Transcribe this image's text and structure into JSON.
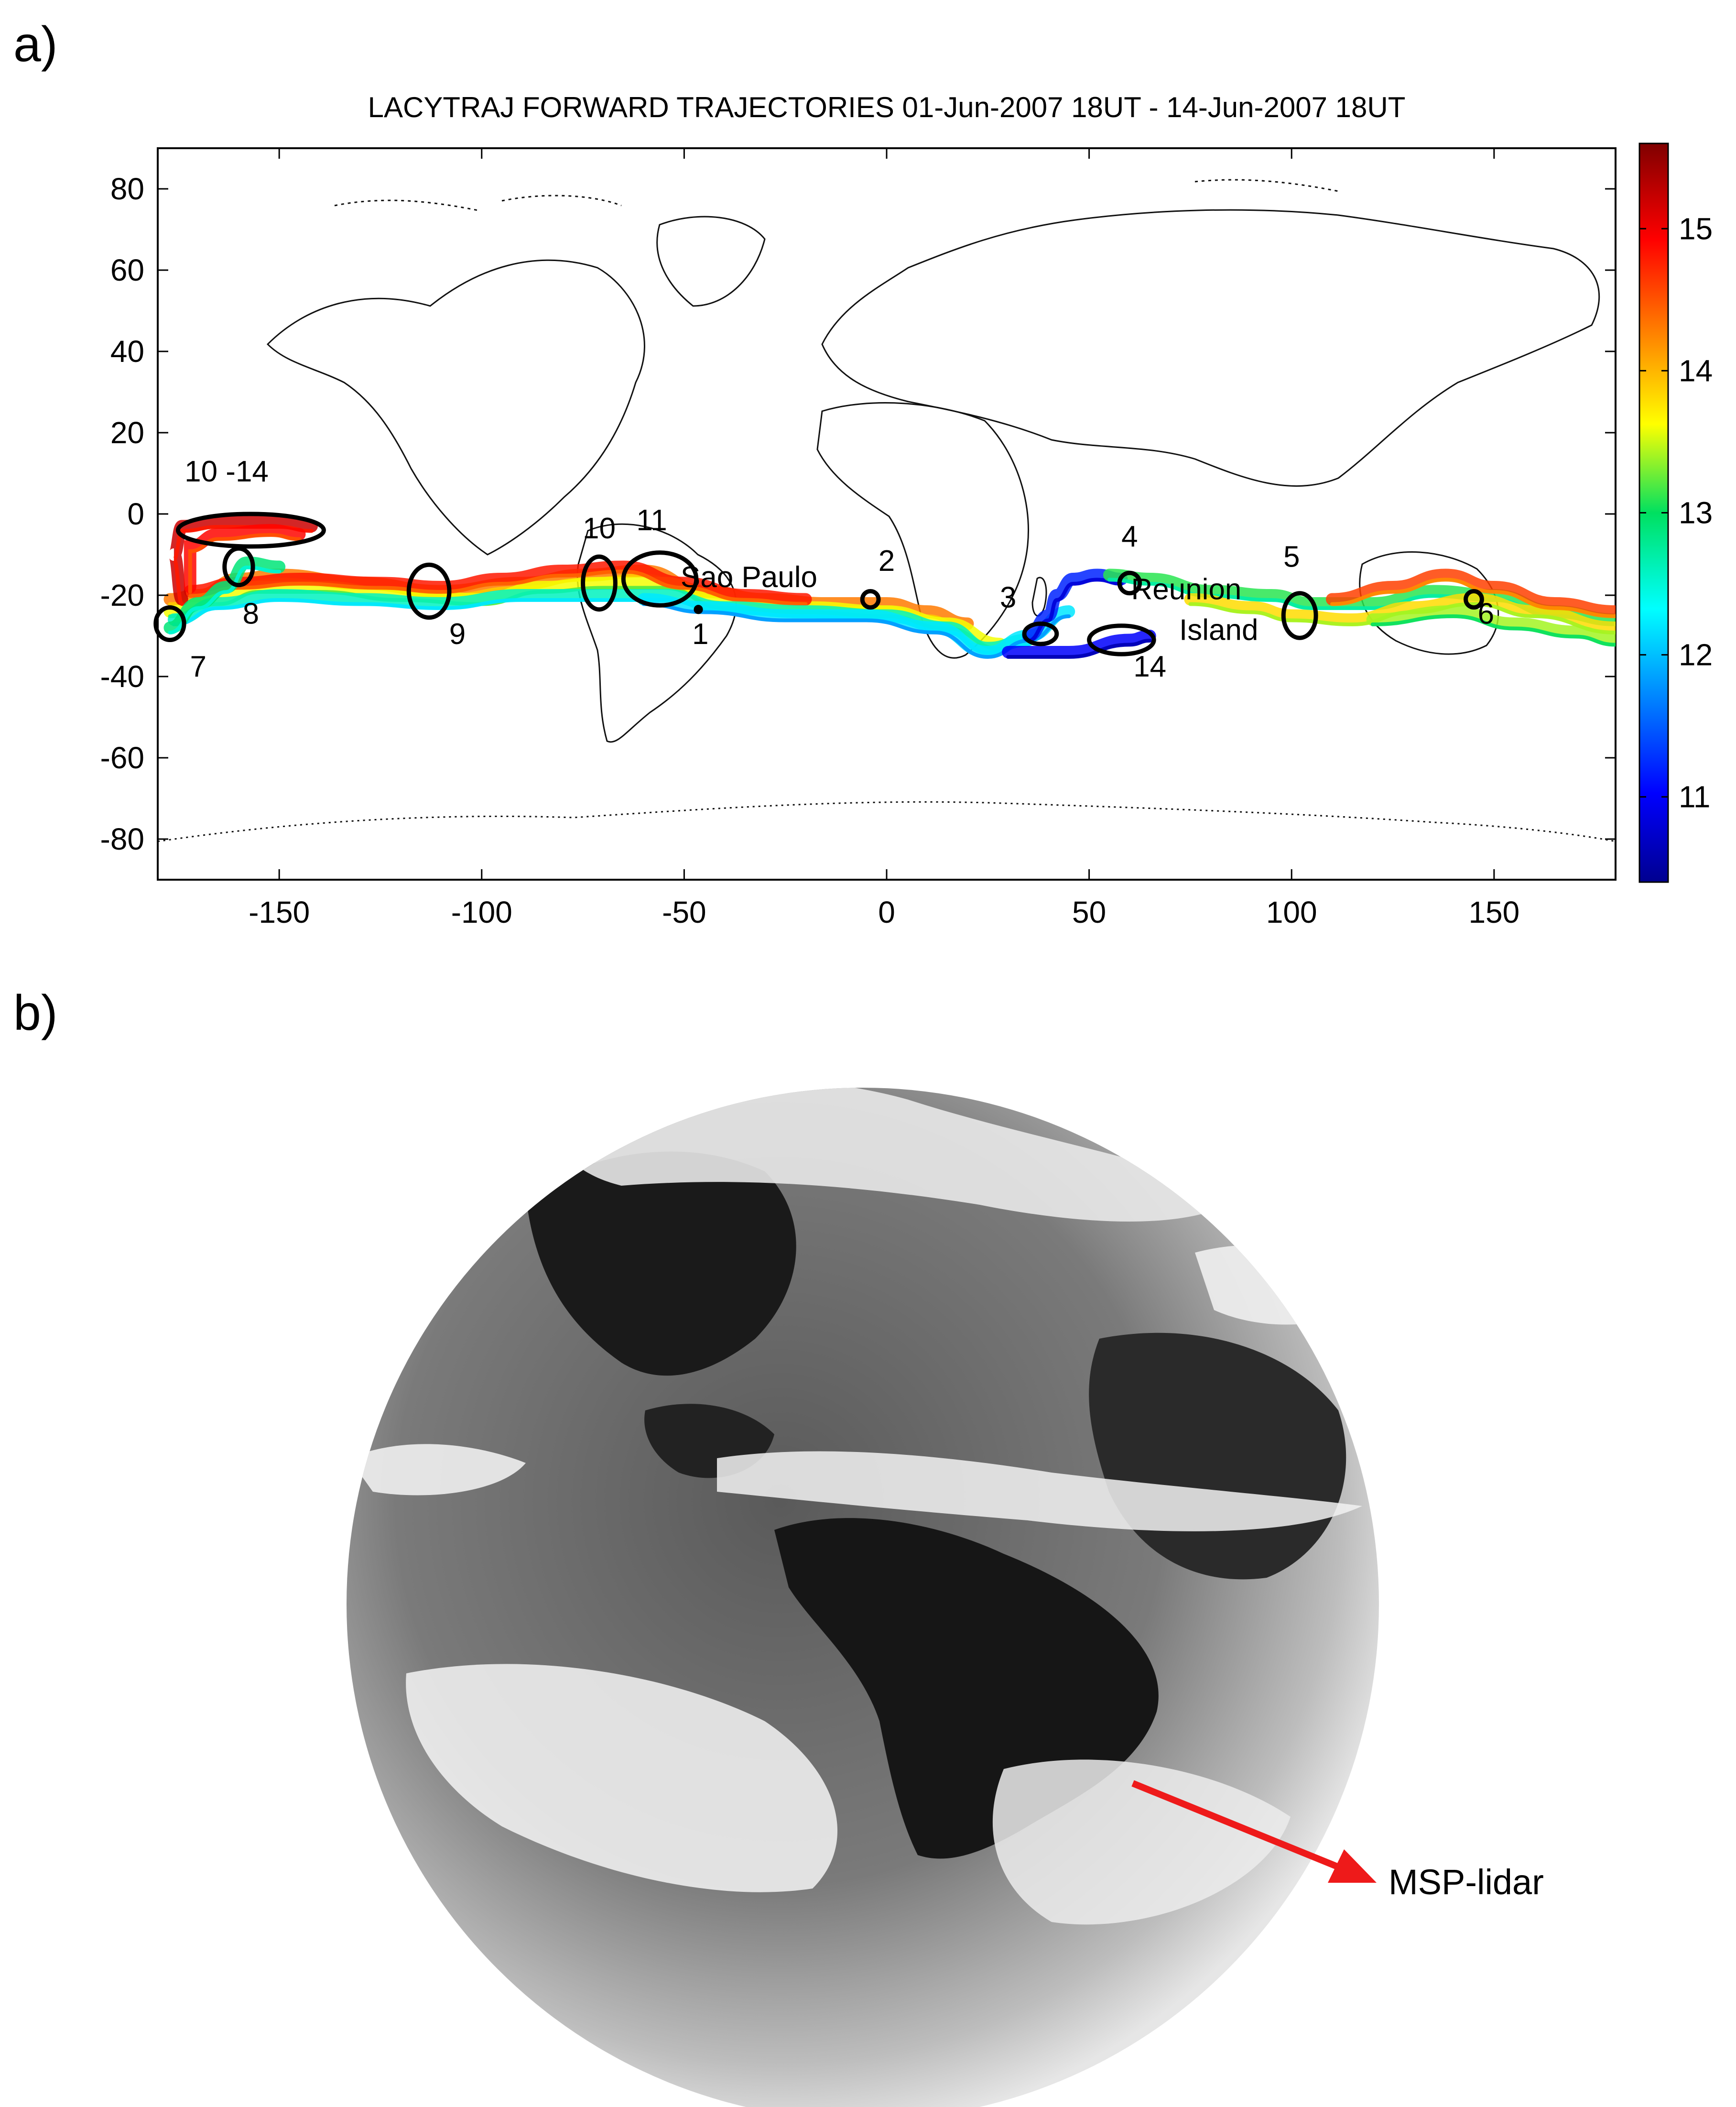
{
  "panels": [
    {
      "label": "a)"
    },
    {
      "label": "b)"
    }
  ],
  "chart_data": {
    "type": "map-trajectories",
    "title": "LACYTRAJ FORWARD TRAJECTORIES 01-Jun-2007 18UT - 14-Jun-2007 18UT",
    "xlim": [
      -180,
      180
    ],
    "ylim": [
      -90,
      90
    ],
    "x_ticks": [
      -150,
      -100,
      -50,
      0,
      50,
      100,
      150
    ],
    "y_ticks": [
      80,
      60,
      40,
      20,
      0,
      -20,
      -40,
      -60,
      -80
    ],
    "colorbar": {
      "range": [
        10.4,
        15.6
      ],
      "ticks": [
        11,
        12,
        13,
        14,
        15
      ],
      "colormap": "jet"
    },
    "annotations": [
      {
        "text": "10 -14",
        "lon": -163,
        "lat": 8
      },
      {
        "text": "8",
        "lon": -157,
        "lat": -27
      },
      {
        "text": "7",
        "lon": -170,
        "lat": -40
      },
      {
        "text": "9",
        "lon": -106,
        "lat": -32
      },
      {
        "text": "10",
        "lon": -71,
        "lat": -6
      },
      {
        "text": "11",
        "lon": -58,
        "lat": -4
      },
      {
        "text": "Sao Paulo",
        "lon": -34,
        "lat": -18
      },
      {
        "text": "1",
        "lon": -46,
        "lat": -32
      },
      {
        "text": "2",
        "lon": 0,
        "lat": -14
      },
      {
        "text": "3",
        "lon": 30,
        "lat": -23
      },
      {
        "text": "4",
        "lon": 60,
        "lat": -8
      },
      {
        "text": "Reunion",
        "lon": 74,
        "lat": -21
      },
      {
        "text": "Island",
        "lon": 82,
        "lat": -31
      },
      {
        "text": "14",
        "lon": 65,
        "lat": -40
      },
      {
        "text": "5",
        "lon": 100,
        "lat": -13
      },
      {
        "text": "6",
        "lon": 148,
        "lat": -27
      }
    ],
    "ellipses": [
      {
        "id": "10-14",
        "lon": -157,
        "lat": -4,
        "rlon": 18,
        "rlat": 4
      },
      {
        "id": "8",
        "lon": -160,
        "lat": -13,
        "rlon": 3.5,
        "rlat": 4.5
      },
      {
        "id": "7",
        "lon": -177,
        "lat": -27,
        "rlon": 3.5,
        "rlat": 4
      },
      {
        "id": "9",
        "lon": -113,
        "lat": -19,
        "rlon": 5,
        "rlat": 6.5
      },
      {
        "id": "10",
        "lon": -71,
        "lat": -17,
        "rlon": 4,
        "rlat": 6.5
      },
      {
        "id": "11",
        "lon": -56,
        "lat": -16,
        "rlon": 9,
        "rlat": 6.5
      },
      {
        "id": "1",
        "lon": -46.5,
        "lat": -23.5,
        "rlon": 0.6,
        "rlat": 0.6
      },
      {
        "id": "2",
        "lon": -4,
        "lat": -21,
        "rlon": 2,
        "rlat": 2
      },
      {
        "id": "3",
        "lon": 38,
        "lat": -29.5,
        "rlon": 4,
        "rlat": 2.5
      },
      {
        "id": "4",
        "lon": 60,
        "lat": -17,
        "rlon": 2.5,
        "rlat": 2.5
      },
      {
        "id": "5",
        "lon": 102,
        "lat": -25,
        "rlon": 4,
        "rlat": 5.5
      },
      {
        "id": "6",
        "lon": 145,
        "lat": -21,
        "rlon": 2,
        "rlat": 2
      },
      {
        "id": "14",
        "lon": 58,
        "lat": -31,
        "rlon": 8,
        "rlat": 3.5
      }
    ],
    "trajectory_bands": [
      {
        "value": 14.3,
        "points": [
          [
            -177,
            -21
          ],
          [
            -170,
            -20
          ],
          [
            -160,
            -16
          ],
          [
            -150,
            -15
          ],
          [
            -130,
            -17
          ],
          [
            -110,
            -19
          ],
          [
            -90,
            -17
          ],
          [
            -75,
            -15
          ],
          [
            -60,
            -14
          ],
          [
            -45,
            -19
          ],
          [
            -30,
            -21
          ],
          [
            -15,
            -22
          ],
          [
            0,
            -22
          ],
          [
            10,
            -24
          ],
          [
            20,
            -27
          ]
        ]
      },
      {
        "value": 13.6,
        "points": [
          [
            -177,
            -24
          ],
          [
            -165,
            -21
          ],
          [
            -155,
            -18
          ],
          [
            -140,
            -18
          ],
          [
            -120,
            -20
          ],
          [
            -100,
            -21
          ],
          [
            -85,
            -18
          ],
          [
            -70,
            -17
          ],
          [
            -55,
            -17
          ],
          [
            -40,
            -22
          ],
          [
            -20,
            -23
          ],
          [
            0,
            -24
          ],
          [
            15,
            -27
          ],
          [
            28,
            -32
          ]
        ]
      },
      {
        "value": 14.8,
        "points": [
          [
            -172,
            -19
          ],
          [
            -160,
            -17
          ],
          [
            -145,
            -16
          ],
          [
            -125,
            -17
          ],
          [
            -110,
            -18
          ],
          [
            -95,
            -16
          ],
          [
            -80,
            -14
          ],
          [
            -65,
            -13
          ],
          [
            -50,
            -17
          ],
          [
            -35,
            -20
          ],
          [
            -20,
            -21
          ]
        ]
      },
      {
        "value": 12.6,
        "points": [
          [
            -176,
            -26
          ],
          [
            -165,
            -22
          ],
          [
            -150,
            -20
          ],
          [
            -130,
            -21
          ],
          [
            -110,
            -22
          ],
          [
            -90,
            -20
          ],
          [
            -70,
            -20
          ],
          [
            -55,
            -20
          ],
          [
            -40,
            -23
          ],
          [
            -20,
            -24
          ],
          [
            0,
            -25
          ],
          [
            15,
            -28
          ],
          [
            25,
            -33
          ],
          [
            35,
            -31
          ]
        ]
      },
      {
        "value": 12.2,
        "points": [
          [
            -60,
            -21
          ],
          [
            -45,
            -23
          ],
          [
            -25,
            -25
          ],
          [
            -5,
            -25
          ],
          [
            12,
            -28
          ],
          [
            25,
            -34
          ],
          [
            35,
            -30
          ],
          [
            45,
            -24
          ]
        ]
      },
      {
        "value": 11.2,
        "points": [
          [
            35,
            -30
          ],
          [
            40,
            -25
          ],
          [
            42,
            -20
          ],
          [
            46,
            -16
          ],
          [
            52,
            -15
          ],
          [
            58,
            -16
          ]
        ]
      },
      {
        "value": 11.0,
        "points": [
          [
            30,
            -34
          ],
          [
            45,
            -34
          ],
          [
            60,
            -31
          ],
          [
            65,
            -30
          ]
        ]
      },
      {
        "value": 13.1,
        "points": [
          [
            55,
            -15
          ],
          [
            65,
            -16
          ],
          [
            80,
            -19
          ],
          [
            95,
            -20
          ],
          [
            105,
            -22
          ],
          [
            120,
            -22
          ],
          [
            135,
            -19
          ],
          [
            150,
            -20
          ],
          [
            165,
            -24
          ],
          [
            180,
            -26
          ]
        ]
      },
      {
        "value": 13.8,
        "points": [
          [
            75,
            -21
          ],
          [
            90,
            -23
          ],
          [
            100,
            -25
          ],
          [
            115,
            -26
          ],
          [
            130,
            -23
          ],
          [
            145,
            -21
          ],
          [
            160,
            -24
          ],
          [
            180,
            -28
          ]
        ]
      },
      {
        "value": 14.6,
        "points": [
          [
            110,
            -21
          ],
          [
            125,
            -18
          ],
          [
            138,
            -15
          ],
          [
            150,
            -18
          ],
          [
            165,
            -22
          ],
          [
            180,
            -24
          ]
        ]
      },
      {
        "value": 13.4,
        "points": [
          [
            120,
            -26
          ],
          [
            140,
            -24
          ],
          [
            155,
            -27
          ],
          [
            170,
            -29
          ],
          [
            180,
            -31
          ]
        ]
      },
      {
        "value": 15.2,
        "points": [
          [
            -174,
            -21
          ],
          [
            -176,
            -10
          ],
          [
            -174,
            -3
          ],
          [
            -165,
            -2
          ],
          [
            -150,
            -2
          ],
          [
            -142,
            -3
          ]
        ]
      },
      {
        "value": 14.9,
        "points": [
          [
            -172,
            -18
          ],
          [
            -172,
            -8
          ],
          [
            -165,
            -5
          ],
          [
            -152,
            -4
          ],
          [
            -145,
            -5
          ]
        ]
      },
      {
        "value": 12.9,
        "points": [
          [
            -177,
            -28
          ],
          [
            -170,
            -22
          ],
          [
            -163,
            -18
          ],
          [
            -158,
            -12
          ],
          [
            -150,
            -13
          ]
        ]
      }
    ]
  },
  "satellite_image": {
    "arrow_label": "MSP-lidar",
    "arrow_color": "#ee1a1a"
  }
}
